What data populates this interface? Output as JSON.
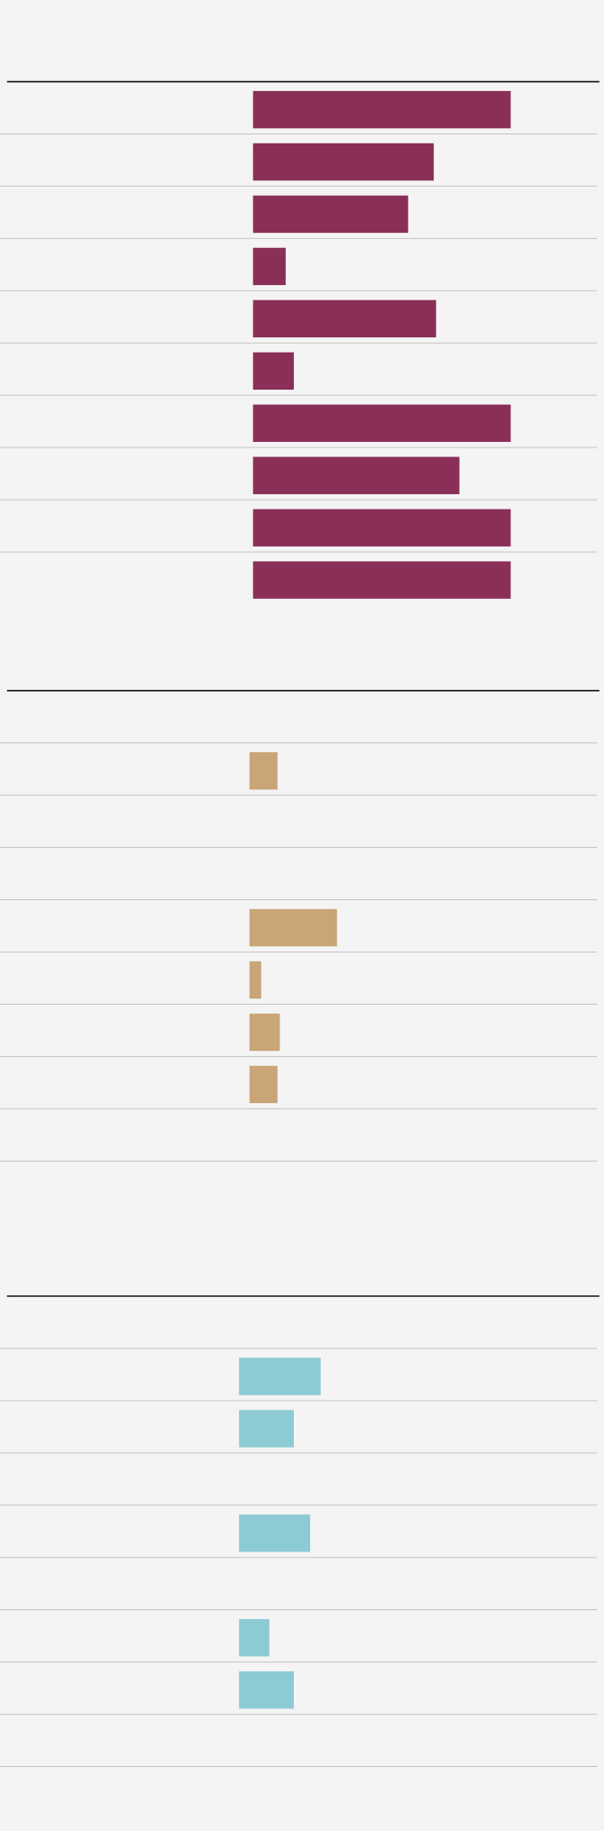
{
  "chart_data": [
    {
      "type": "bar",
      "orientation": "horizontal",
      "color": "#8a2f58",
      "xlim": [
        0,
        300
      ],
      "categories": [
        null,
        null,
        null,
        null,
        null,
        null,
        null,
        null,
        null,
        null
      ],
      "values": [
        221,
        155,
        133,
        28,
        157,
        35,
        221,
        177,
        221,
        221
      ]
    },
    {
      "type": "bar",
      "orientation": "horizontal",
      "color": "#c9a578",
      "xlim": [
        0,
        300
      ],
      "categories": [
        null,
        null,
        null,
        null,
        null,
        null,
        null,
        null,
        null
      ],
      "values": [
        null,
        24,
        null,
        null,
        75,
        10,
        26,
        24,
        null
      ]
    },
    {
      "type": "bar",
      "orientation": "horizontal",
      "color": "#8ccbd3",
      "xlim": [
        0,
        300
      ],
      "categories": [
        null,
        null,
        null,
        null,
        null,
        null,
        null,
        null,
        null
      ],
      "values": [
        null,
        70,
        47,
        null,
        61,
        null,
        26,
        47,
        null
      ]
    }
  ]
}
